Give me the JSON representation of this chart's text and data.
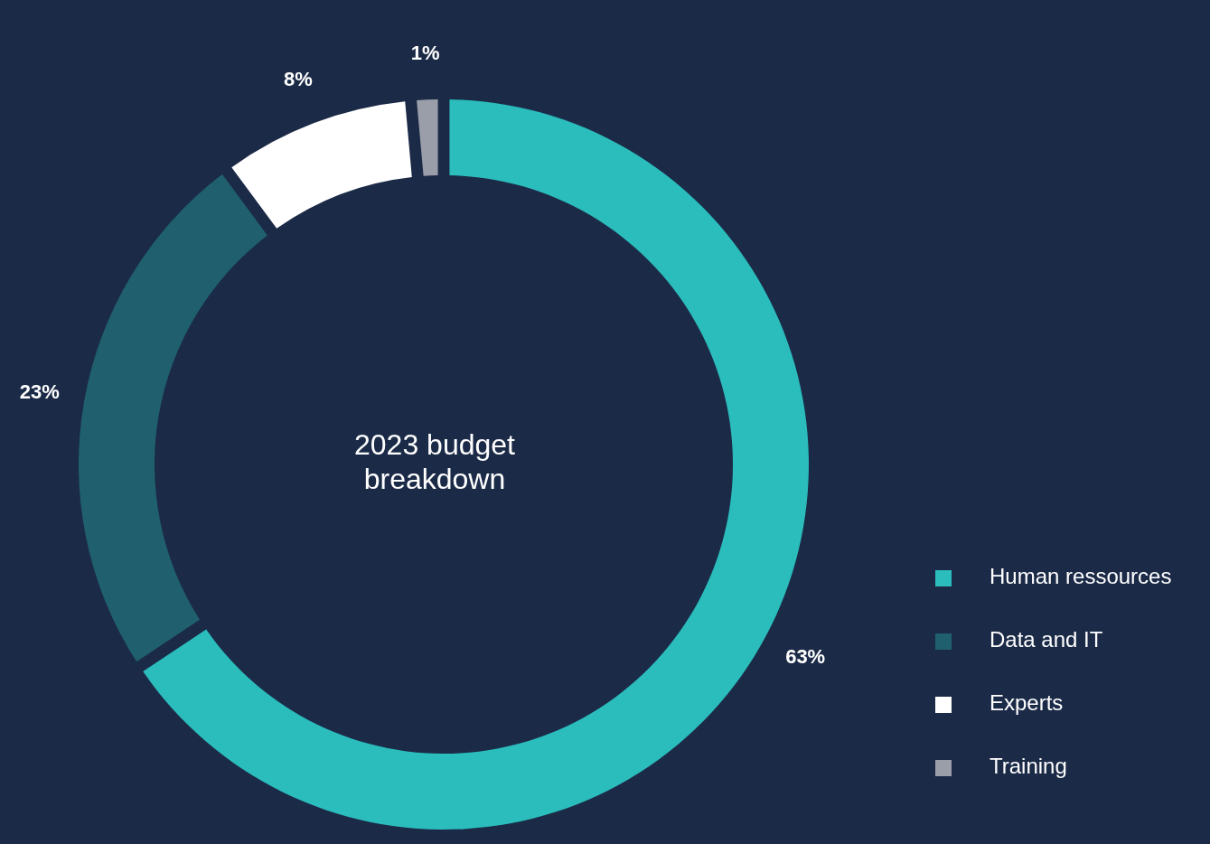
{
  "chart_data": {
    "type": "donut",
    "title": "2023 budget breakdown",
    "categories": [
      "Human ressources",
      "Data and IT",
      "Experts",
      "Training"
    ],
    "values": [
      63,
      23,
      8,
      1
    ],
    "colors": [
      "#2bbcbc",
      "#1f5f6e",
      "#ffffff",
      "#9a9ea8"
    ],
    "value_labels": [
      "63%",
      "23%",
      "8%",
      "1%"
    ],
    "legend": "bottom right"
  }
}
